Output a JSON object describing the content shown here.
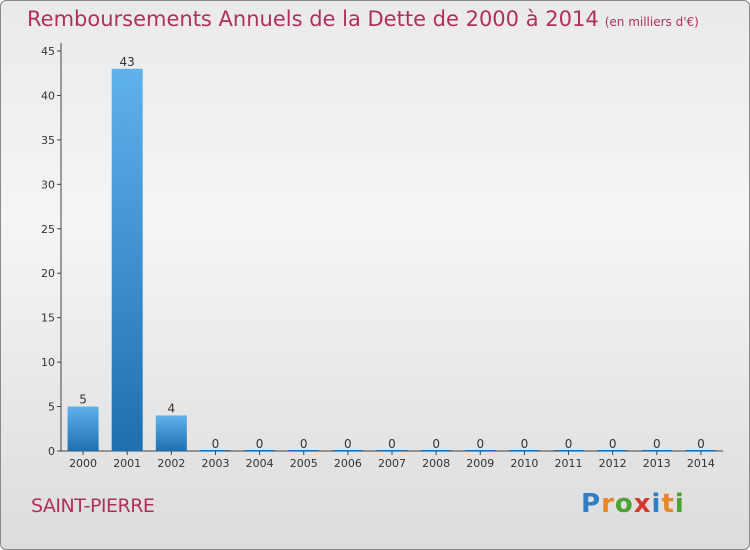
{
  "header": {
    "title": "Remboursements Annuels de la Dette de 2000 à 2014",
    "unit_note": "(en milliers d'€)"
  },
  "footer": {
    "commune": "SAINT-PIERRE",
    "logo_letters": [
      "P",
      "r",
      "o",
      "x",
      "i",
      "t",
      "i"
    ]
  },
  "colors": {
    "title": "#b0305a",
    "bar_top": "#5fb2ec",
    "bar_bottom": "#1f6fb0"
  },
  "chart_data": {
    "type": "bar",
    "categories": [
      "2000",
      "2001",
      "2002",
      "2003",
      "2004",
      "2005",
      "2006",
      "2007",
      "2008",
      "2009",
      "2010",
      "2011",
      "2012",
      "2013",
      "2014"
    ],
    "values": [
      5,
      43,
      4,
      0,
      0,
      0,
      0,
      0,
      0,
      0,
      0,
      0,
      0,
      0,
      0
    ],
    "ylim": [
      0,
      45
    ],
    "yticks": [
      0,
      5,
      10,
      15,
      20,
      25,
      30,
      35,
      40,
      45
    ],
    "grid": false,
    "data_labels": true
  }
}
